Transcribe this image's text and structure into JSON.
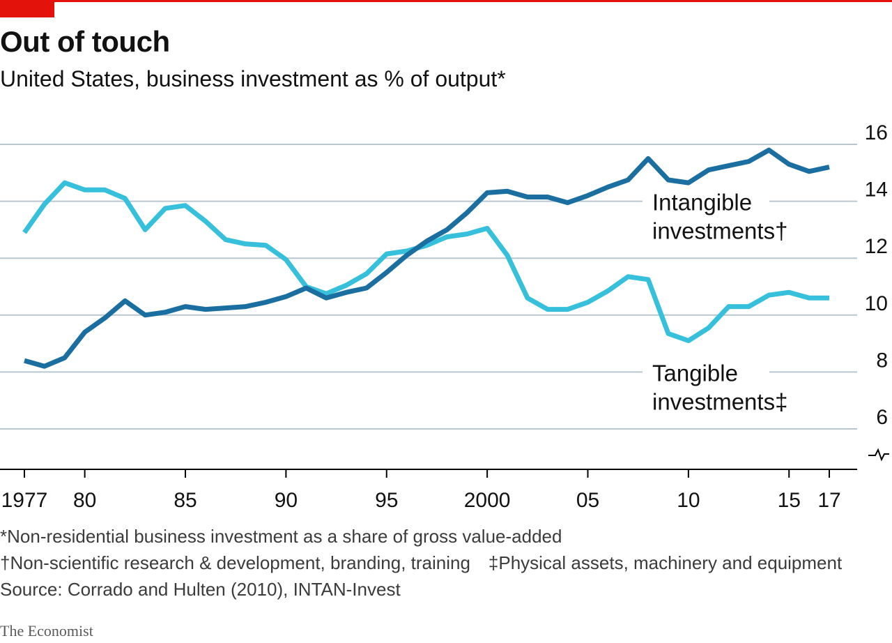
{
  "header": {
    "title": "Out of touch",
    "subtitle": "United States, business investment as % of output*"
  },
  "chart_data": {
    "type": "line",
    "title": "Out of touch",
    "subtitle": "United States, business investment as % of output*",
    "xlim": [
      1977,
      2017
    ],
    "ylim": [
      6,
      16
    ],
    "y_ticks": [
      6,
      8,
      10,
      12,
      14,
      16
    ],
    "x_ticks": [
      {
        "value": 1977,
        "label": "1977"
      },
      {
        "value": 1980,
        "label": "80"
      },
      {
        "value": 1985,
        "label": "85"
      },
      {
        "value": 1990,
        "label": "90"
      },
      {
        "value": 1995,
        "label": "95"
      },
      {
        "value": 2000,
        "label": "2000"
      },
      {
        "value": 2005,
        "label": "05"
      },
      {
        "value": 2010,
        "label": "10"
      },
      {
        "value": 2015,
        "label": "15"
      },
      {
        "value": 2017,
        "label": "17"
      }
    ],
    "axis_break": true,
    "grid": true,
    "y_axis_position": "right",
    "x": [
      1977,
      1978,
      1979,
      1980,
      1981,
      1982,
      1983,
      1984,
      1985,
      1986,
      1987,
      1988,
      1989,
      1990,
      1991,
      1992,
      1993,
      1994,
      1995,
      1996,
      1997,
      1998,
      1999,
      2000,
      2001,
      2002,
      2003,
      2004,
      2005,
      2006,
      2007,
      2008,
      2009,
      2010,
      2011,
      2012,
      2013,
      2014,
      2015,
      2016,
      2017
    ],
    "series": [
      {
        "name": "Intangible investments†",
        "label_lines": [
          "Intangible",
          "investments†"
        ],
        "color": "#1a6fa0",
        "values": [
          8.4,
          8.2,
          8.5,
          9.4,
          9.9,
          10.5,
          10.0,
          10.1,
          10.3,
          10.2,
          10.25,
          10.3,
          10.45,
          10.65,
          10.95,
          10.6,
          10.8,
          10.95,
          11.5,
          12.1,
          12.6,
          13.0,
          13.6,
          14.3,
          14.35,
          14.15,
          14.15,
          13.95,
          14.2,
          14.5,
          14.75,
          15.5,
          14.75,
          14.65,
          15.1,
          15.25,
          15.4,
          15.8,
          15.3,
          15.05,
          15.2
        ]
      },
      {
        "name": "Tangible investments‡",
        "label_lines": [
          "Tangible",
          "investments‡"
        ],
        "color": "#37c0dc",
        "values": [
          12.9,
          13.9,
          14.65,
          14.4,
          14.4,
          14.1,
          13.0,
          13.75,
          13.85,
          13.3,
          12.65,
          12.5,
          12.45,
          11.95,
          11.0,
          10.75,
          11.05,
          11.45,
          12.15,
          12.25,
          12.45,
          12.75,
          12.85,
          13.05,
          12.1,
          10.6,
          10.2,
          10.2,
          10.45,
          10.85,
          11.35,
          11.25,
          9.35,
          9.1,
          9.55,
          10.3,
          10.3,
          10.7,
          10.8,
          10.6,
          10.6
        ]
      }
    ]
  },
  "footnotes": {
    "asterisk": "*Non-residential business investment as a share of gross value-added",
    "dagger": "†Non-scientific research & development, branding, training",
    "double_dagger": "‡Physical assets, machinery and equipment",
    "source": "Source: Corrado and Hulten (2010), INTAN-Invest"
  },
  "brand": "The Economist",
  "colors": {
    "accent": "#e3120b",
    "grid": "#b7c6cf",
    "text": "#121212"
  }
}
